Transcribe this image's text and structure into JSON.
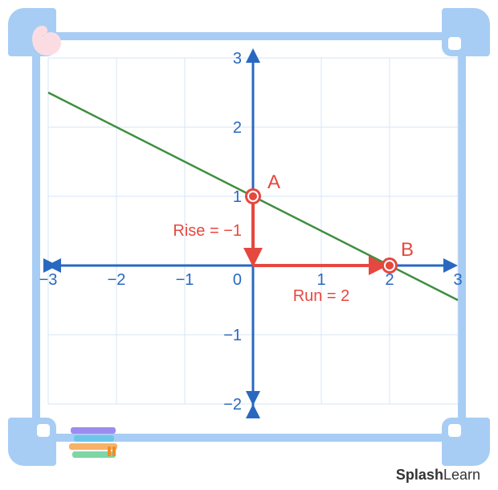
{
  "chart": {
    "type": "line",
    "xlim": [
      -3,
      3
    ],
    "ylim": [
      -2,
      3
    ],
    "xticks": [
      -3,
      -2,
      -1,
      1,
      2,
      3
    ],
    "yticks": [
      -2,
      -1,
      1,
      2,
      3
    ],
    "origin_label": "0",
    "grid_color": "#d7e4f5",
    "axis_color": "#2968c0",
    "axis_width": 3,
    "tick_fontsize": 20,
    "tick_color": "#2968c0",
    "background_color": "#ffffff",
    "line": {
      "color": "#3e8e3e",
      "width": 2.5,
      "p1": [
        -3,
        2.5
      ],
      "p2": [
        3,
        -0.5
      ]
    },
    "points": {
      "A": {
        "xy": [
          0,
          1
        ],
        "label": "A",
        "color": "#e5483f",
        "radius": 8,
        "ring": "#ffffff",
        "label_color": "#e5483f",
        "label_fontsize": 24
      },
      "B": {
        "xy": [
          2,
          0
        ],
        "label": "B",
        "color": "#e5483f",
        "radius": 8,
        "ring": "#ffffff",
        "label_color": "#e5483f",
        "label_fontsize": 24
      }
    },
    "rise_run": {
      "color": "#e5483f",
      "width": 4,
      "rise": {
        "from": [
          0,
          1
        ],
        "to": [
          0,
          0
        ],
        "label": "Rise = −1"
      },
      "run": {
        "from": [
          0,
          0
        ],
        "to": [
          2,
          0
        ],
        "label": "Run = 2"
      },
      "label_fontsize": 20
    }
  },
  "frame": {
    "corner_color": "#a7cdf4",
    "bar_color": "#a7cdf4",
    "swirl_color": "#fcdce3"
  },
  "brand": {
    "bold": "Splash",
    "rest": "Learn"
  }
}
